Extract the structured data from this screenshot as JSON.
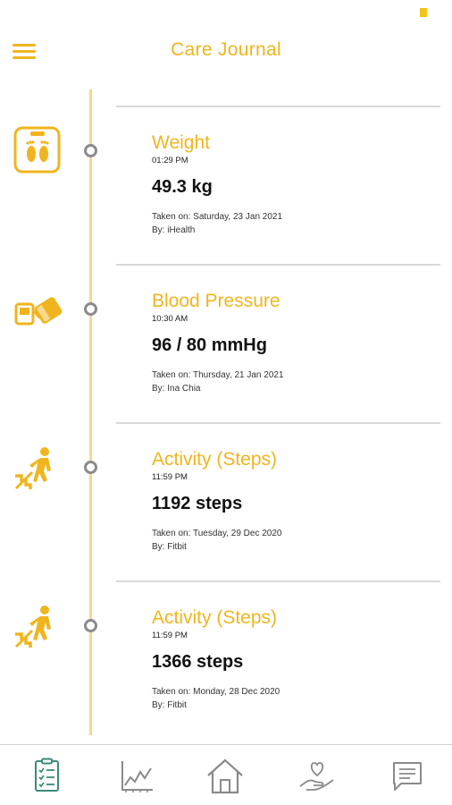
{
  "header": {
    "title": "Care Journal",
    "menu_icon": "hamburger-menu-icon"
  },
  "colors": {
    "accent": "#f0b51e",
    "timeline": "#f6d98a",
    "node": "#8b8b8b",
    "divider": "#d9d9d9",
    "nav_active": "#3a8a7a",
    "nav_inactive": "#8a8a8a"
  },
  "entries": [
    {
      "icon": "weight-scale-icon",
      "title": "Weight",
      "time": "01:29 PM",
      "value": "49.3 kg",
      "taken_on": "Taken on: Saturday, 23 Jan 2021",
      "by": "By: iHealth"
    },
    {
      "icon": "blood-pressure-icon",
      "title": "Blood Pressure",
      "time": "10:30 AM",
      "value": "96 / 80 mmHg",
      "taken_on": "Taken on: Thursday, 21 Jan 2021",
      "by": "By: Ina Chia"
    },
    {
      "icon": "stairs-walking-icon",
      "title": "Activity (Steps)",
      "time": "11:59 PM",
      "value": "1192 steps",
      "taken_on": "Taken on: Tuesday, 29 Dec 2020",
      "by": "By: Fitbit"
    },
    {
      "icon": "stairs-walking-icon",
      "title": "Activity (Steps)",
      "time": "11:59 PM",
      "value": "1366 steps",
      "taken_on": "Taken on: Monday, 28 Dec 2020",
      "by": "By: Fitbit"
    }
  ],
  "bottom_nav": [
    {
      "icon": "journal-checklist-icon",
      "active": true
    },
    {
      "icon": "line-chart-icon",
      "active": false
    },
    {
      "icon": "home-icon",
      "active": false
    },
    {
      "icon": "care-hand-heart-icon",
      "active": false
    },
    {
      "icon": "message-icon",
      "active": false
    }
  ]
}
